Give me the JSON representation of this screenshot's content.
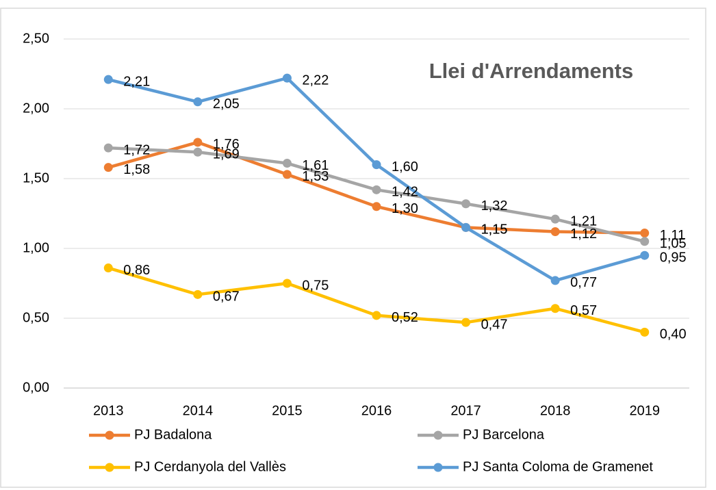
{
  "chart_data": {
    "type": "line",
    "title": "Llei d'Arrendaments",
    "categories": [
      "2013",
      "2014",
      "2015",
      "2016",
      "2017",
      "2018",
      "2019"
    ],
    "series": [
      {
        "name": "PJ Badalona",
        "color": "#ED7D31",
        "values": [
          1.58,
          1.76,
          1.53,
          1.3,
          1.15,
          1.12,
          1.11
        ],
        "value_labels": [
          "1,58",
          "1,76",
          "1,53",
          "1,30",
          "1,15",
          "1,12",
          "1,11"
        ]
      },
      {
        "name": "PJ Barcelona",
        "color": "#A5A5A5",
        "values": [
          1.72,
          1.69,
          1.61,
          1.42,
          1.32,
          1.21,
          1.05
        ],
        "value_labels": [
          "1,72",
          "1,69",
          "1,61",
          "1,42",
          "1,32",
          "1,21",
          "1,05"
        ]
      },
      {
        "name": "PJ Cerdanyola del Vallès",
        "color": "#FFC000",
        "values": [
          0.86,
          0.67,
          0.75,
          0.52,
          0.47,
          0.57,
          0.4
        ],
        "value_labels": [
          "0,86",
          "0,67",
          "0,75",
          "0,52",
          "0,47",
          "0,57",
          "0,40"
        ]
      },
      {
        "name": "PJ Santa Coloma de Gramenet",
        "color": "#5B9BD5",
        "values": [
          2.21,
          2.05,
          2.22,
          1.6,
          1.15,
          0.77,
          0.95
        ],
        "value_labels": [
          "2,21",
          "2,05",
          "2,22",
          "1,60",
          "1,15",
          "0,77",
          "0,95"
        ]
      }
    ],
    "ylim": [
      0,
      2.5
    ],
    "yticks": [
      {
        "value": 0,
        "label": "0,00"
      },
      {
        "value": 0.5,
        "label": "0,50"
      },
      {
        "value": 1,
        "label": "1,00"
      },
      {
        "value": 1.5,
        "label": "1,50"
      },
      {
        "value": 2,
        "label": "2,00"
      },
      {
        "value": 2.5,
        "label": "2,50"
      }
    ],
    "grid": true,
    "legend": "bottom"
  }
}
